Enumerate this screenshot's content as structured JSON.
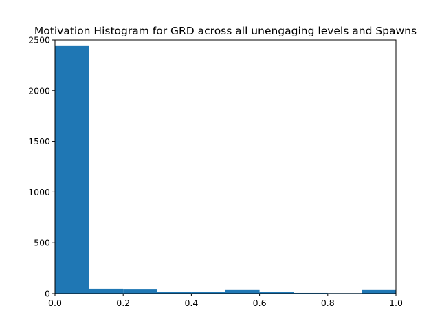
{
  "chart_data": {
    "type": "bar",
    "title": "Motivation Histogram for GRD across all unengaging levels and Spawns",
    "xlabel": "",
    "ylabel": "",
    "xlim": [
      0,
      1
    ],
    "ylim": [
      0,
      2500
    ],
    "bin_edges": [
      0.0,
      0.1,
      0.2,
      0.3,
      0.4,
      0.5,
      0.6,
      0.7,
      0.8,
      0.9,
      1.0
    ],
    "values": [
      2440,
      48,
      40,
      16,
      14,
      35,
      20,
      7,
      5,
      35
    ],
    "bar_color": "#1f77b4",
    "x_ticks": [
      0.0,
      0.2,
      0.4,
      0.6,
      0.8,
      1.0
    ],
    "x_tick_labels": [
      "0.0",
      "0.2",
      "0.4",
      "0.6",
      "0.8",
      "1.0"
    ],
    "y_ticks": [
      0,
      500,
      1000,
      1500,
      2000,
      2500
    ],
    "y_tick_labels": [
      "0",
      "500",
      "1000",
      "1500",
      "2000",
      "2500"
    ],
    "grid": false,
    "legend": "none"
  }
}
